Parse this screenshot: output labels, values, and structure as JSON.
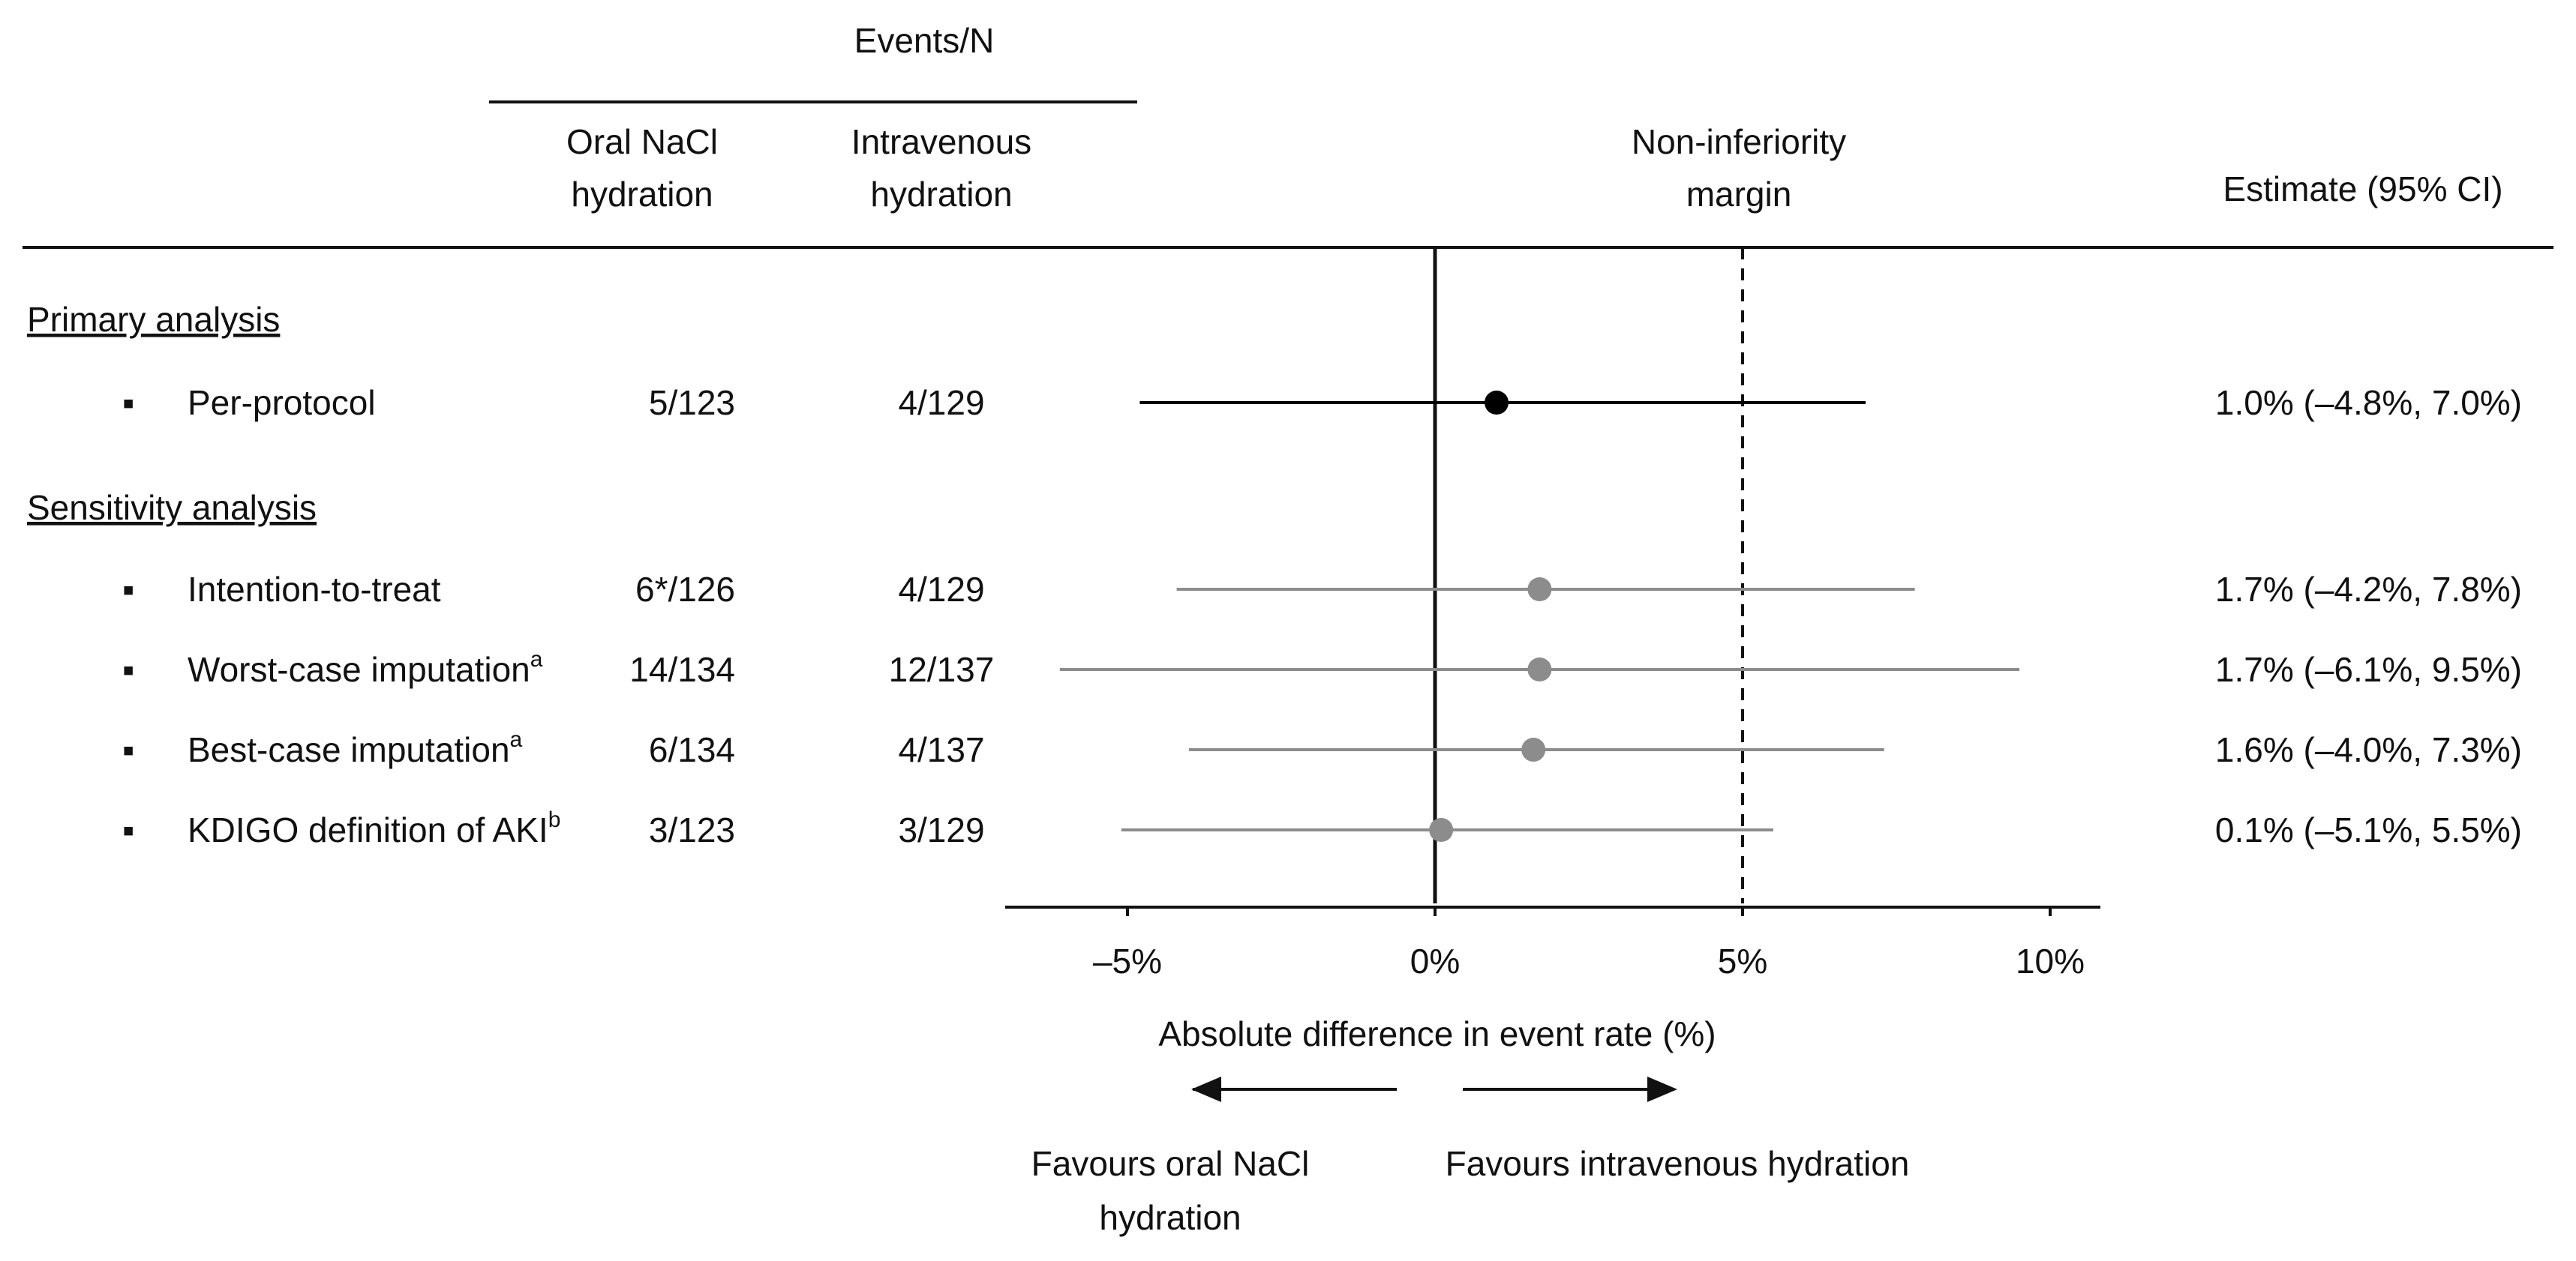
{
  "header": {
    "events_group": "Events/N",
    "col_oral": [
      "Oral NaCl",
      "hydration"
    ],
    "col_iv": [
      "Intravenous",
      "hydration"
    ],
    "margin_label": [
      "Non-inferiority",
      "margin"
    ],
    "estimate_header": "Estimate (95% CI)"
  },
  "sections": [
    {
      "label": "Primary analysis"
    },
    {
      "label": "Sensitivity analysis"
    }
  ],
  "rows": [
    {
      "label": "Per-protocol",
      "label_sup": "",
      "oral": "5/123",
      "iv": "4/129",
      "estimate": "1.0% (–4.8%, 7.0%)"
    },
    {
      "label": "Intention-to-treat",
      "label_sup": "",
      "oral": "6*/126",
      "iv": "4/129",
      "estimate": "1.7% (–4.2%, 7.8%)"
    },
    {
      "label": "Worst-case imputation",
      "label_sup": "a",
      "oral": "14/134",
      "iv": "12/137",
      "estimate": "1.7% (–6.1%, 9.5%)"
    },
    {
      "label": "Best-case imputation",
      "label_sup": "a",
      "oral": "6/134",
      "iv": "4/137",
      "estimate": "1.6% (–4.0%, 7.3%)"
    },
    {
      "label": "KDIGO definition of AKI",
      "label_sup": "b",
      "oral": "3/123",
      "iv": "3/129",
      "estimate": "0.1% (–5.1%, 5.5%)"
    }
  ],
  "bullet": "▪",
  "xlabel": "Absolute difference in event rate (%)",
  "favours_left": [
    "Favours oral NaCl",
    "hydration"
  ],
  "favours_right": "Favours intravenous hydration",
  "colors": {
    "primary": "#000000",
    "sensitivity": "#8c8c8c"
  },
  "chart_data": {
    "type": "forest",
    "xlim": [
      -7,
      11
    ],
    "ticks": [
      -5,
      0,
      5,
      10
    ],
    "tick_labels": [
      "–5%",
      "0%",
      "5%",
      "10%"
    ],
    "reference_line": 0,
    "noninferiority_margin": 5,
    "xlabel": "Absolute difference in event rate (%)",
    "series": [
      {
        "name": "Per-protocol",
        "estimate": 1.0,
        "lower": -4.8,
        "upper": 7.0
      },
      {
        "name": "Intention-to-treat",
        "estimate": 1.7,
        "lower": -4.2,
        "upper": 7.8
      },
      {
        "name": "Worst-case imputation",
        "estimate": 1.7,
        "lower": -6.1,
        "upper": 9.5
      },
      {
        "name": "Best-case imputation",
        "estimate": 1.6,
        "lower": -4.0,
        "upper": 7.3
      },
      {
        "name": "KDIGO definition of AKI",
        "estimate": 0.1,
        "lower": -5.1,
        "upper": 5.5
      }
    ]
  }
}
